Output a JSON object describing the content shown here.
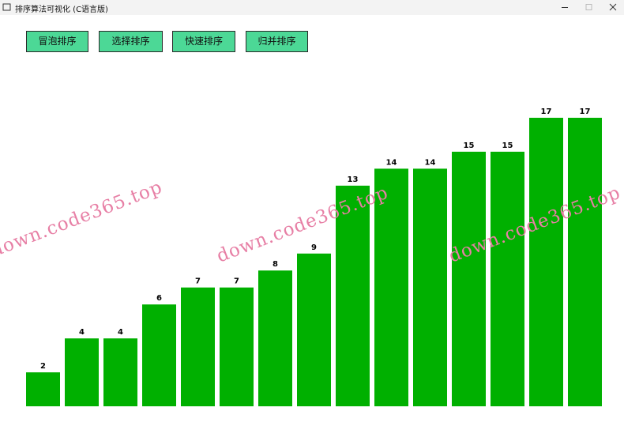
{
  "window": {
    "title": "排序算法可视化 (C语言版)",
    "buttons": [
      "冒泡排序",
      "选择排序",
      "快速排序",
      "归并排序"
    ],
    "watermark": "down.code365.top"
  },
  "chart_data": {
    "type": "bar",
    "values": [
      2,
      4,
      4,
      6,
      7,
      7,
      8,
      9,
      13,
      14,
      14,
      15,
      15,
      17,
      17
    ],
    "color": "#00b000"
  }
}
